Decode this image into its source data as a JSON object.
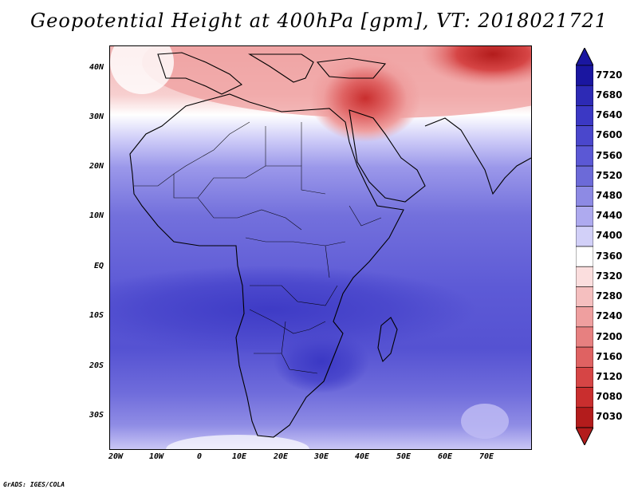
{
  "title": "Geopotential Height at 400hPa [gpm], VT: 2018021721",
  "credit": "GrADS: IGES/COLA",
  "map": {
    "region": "Africa",
    "lon_range": [
      -22,
      80
    ],
    "lat_range": [
      -37,
      45
    ],
    "y_tick_labels": [
      "40N",
      "30N",
      "20N",
      "10N",
      "EQ",
      "10S",
      "20S",
      "30S"
    ],
    "x_tick_labels": [
      "20W",
      "10W",
      "0",
      "10E",
      "20E",
      "30E",
      "40E",
      "50E",
      "60E",
      "70E"
    ]
  },
  "colorbar": {
    "levels": [
      "7720",
      "7680",
      "7640",
      "7600",
      "7560",
      "7520",
      "7480",
      "7440",
      "7400",
      "7360",
      "7320",
      "7280",
      "7240",
      "7200",
      "7160",
      "7120",
      "7080",
      "7030"
    ],
    "colors": [
      "#1a16a0",
      "#2d2ab5",
      "#3b38c4",
      "#4a47cc",
      "#5b58d5",
      "#6c6ad8",
      "#8d8ae4",
      "#aeaaef",
      "#d2d0f8",
      "#ffffff",
      "#fbdede",
      "#f5bfbf",
      "#ef9f9f",
      "#e78080",
      "#df6262",
      "#d64545",
      "#c92e2e",
      "#b31c1c"
    ],
    "top_arrow_color": "#1a16a0",
    "bottom_arrow_color": "#b31c1c"
  }
}
